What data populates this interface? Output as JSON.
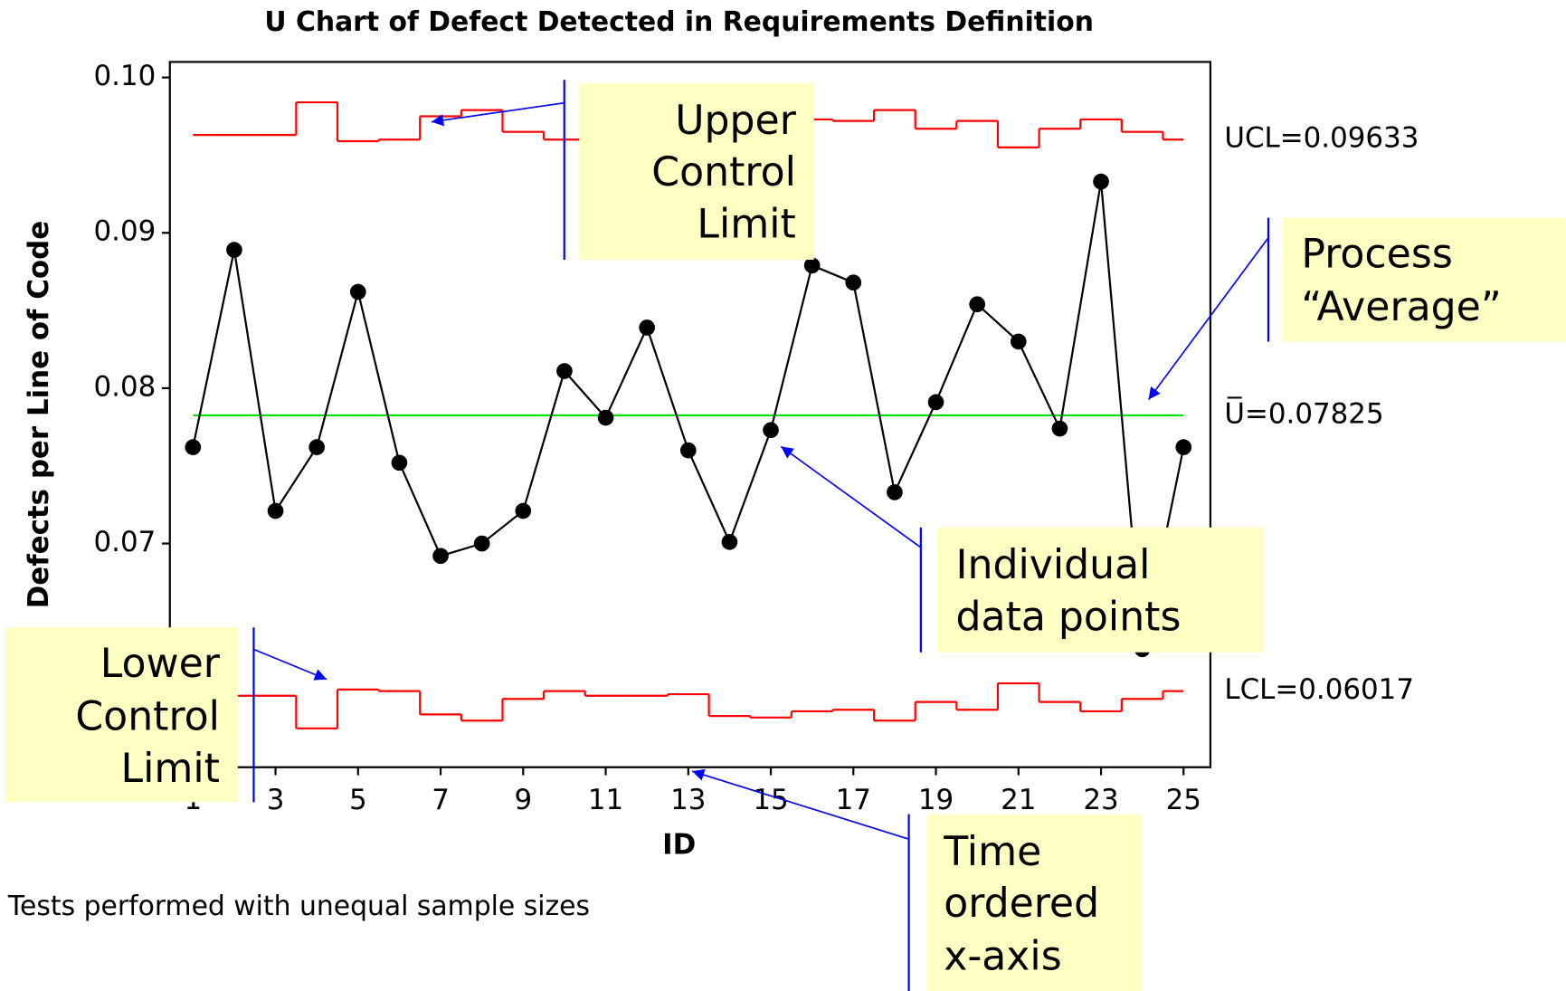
{
  "chart_data": {
    "type": "line",
    "title": "U Chart of Defect Detected in Requirements Definition",
    "xlabel": "ID",
    "ylabel": "Defects per Line of Code",
    "x": [
      1,
      2,
      3,
      4,
      5,
      6,
      7,
      8,
      9,
      10,
      11,
      12,
      13,
      14,
      15,
      16,
      17,
      18,
      19,
      20,
      21,
      22,
      23,
      24,
      25
    ],
    "xlim": [
      0.44,
      25.65
    ],
    "xticks": [
      1,
      3,
      5,
      7,
      9,
      11,
      13,
      15,
      17,
      19,
      21,
      23,
      25
    ],
    "ylim": [
      0.0556,
      0.101
    ],
    "yticks": [
      0.07,
      0.08,
      0.09,
      {
        "value": 0.1,
        "label": "0.10"
      }
    ],
    "series": [
      {
        "color": "#000000",
        "markers": true,
        "values": [
          0.0762,
          0.0889,
          0.0721,
          0.0762,
          0.0862,
          0.0752,
          0.0692,
          0.07,
          0.0721,
          0.0811,
          0.0781,
          0.0839,
          0.076,
          0.0701,
          0.0773,
          0.0879,
          0.0868,
          0.0733,
          0.0791,
          0.0854,
          0.083,
          0.0774,
          0.0933,
          0.0632,
          0.0762
        ]
      },
      {
        "color": "#ff0000",
        "step": true,
        "label": "UCL=0.09633",
        "values": [
          0.0963,
          0.0963,
          0.0963,
          0.0984,
          0.0959,
          0.096,
          0.0975,
          0.0979,
          0.0965,
          0.096,
          0.0963,
          0.0963,
          0.0962,
          0.0976,
          0.0977,
          0.0973,
          0.0972,
          0.0979,
          0.0967,
          0.0972,
          0.0955,
          0.0967,
          0.0973,
          0.0965,
          0.096
        ]
      },
      {
        "color": "#ff0000",
        "step": true,
        "label": "LCL=0.06017",
        "values": [
          0.0602,
          0.0602,
          0.0602,
          0.0581,
          0.0606,
          0.0605,
          0.059,
          0.0586,
          0.06,
          0.0605,
          0.0602,
          0.0602,
          0.0603,
          0.0589,
          0.0588,
          0.0592,
          0.0593,
          0.0586,
          0.0598,
          0.0593,
          0.061,
          0.0598,
          0.0592,
          0.06,
          0.0605
        ]
      }
    ],
    "center_line": {
      "value": 0.07825,
      "color": "#00e000",
      "label": "U̅=0.07825"
    },
    "annotations": [
      {
        "lines": [
          "Upper",
          "Control",
          "Limit"
        ]
      },
      {
        "lines": [
          "Process",
          "“Average”"
        ]
      },
      {
        "lines": [
          "Individual",
          "data points"
        ]
      },
      {
        "lines": [
          "Lower",
          "Control",
          "Limit"
        ]
      },
      {
        "lines": [
          "Time",
          "ordered",
          "x-axis"
        ]
      }
    ],
    "note": "Tests performed with unequal sample sizes"
  }
}
